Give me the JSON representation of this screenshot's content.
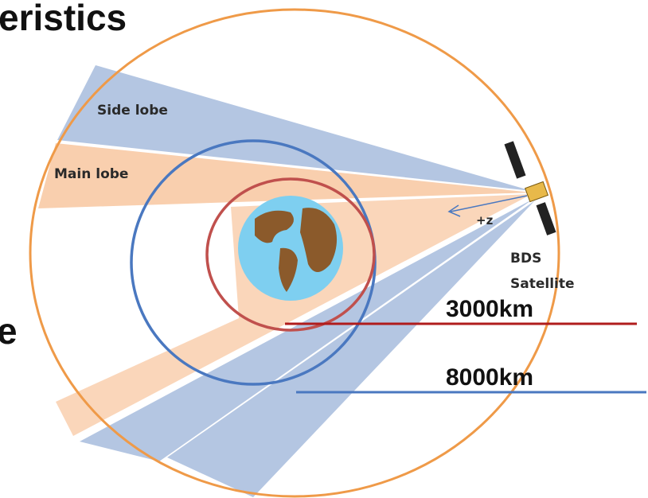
{
  "header": {
    "title": "eristics"
  },
  "side_text": "e",
  "lobes": {
    "side": "Side lobe",
    "main": "Main lobe"
  },
  "satellite": {
    "axis": "+z",
    "name_line1": "BDS",
    "name_line2": "Satellite"
  },
  "orbits": {
    "inner": "3000km",
    "outer": "8000km"
  }
}
